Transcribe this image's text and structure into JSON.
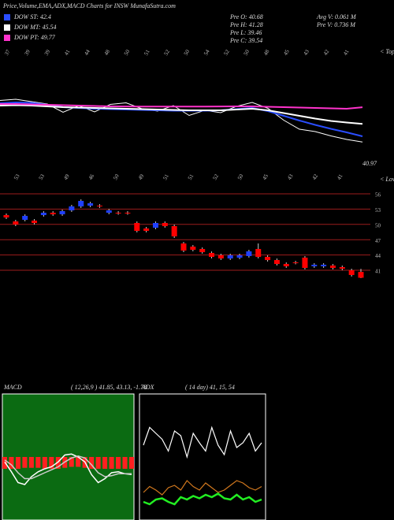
{
  "chart_data": [
    {
      "type": "line",
      "title": "Price,Volume,EMA,ADX,MACD Charts for INSW MunafaSutra.com",
      "info": [
        "Pre O: 40.68",
        "Pre H: 41.28",
        "Pre L: 39.46",
        "Pre C: 39.54",
        "Avg V: 0.061 M",
        "Pre V: 0.736 M"
      ],
      "annotation": "< Top",
      "x_labels_top": [
        "37",
        "39",
        "39",
        "41",
        "44",
        "48",
        "50",
        "51",
        "52",
        "50",
        "54",
        "52",
        "50",
        "48",
        "45",
        "43",
        "42",
        "41"
      ],
      "x_labels_bottom": [
        "53",
        "53",
        "49",
        "46",
        "50",
        "49",
        "51",
        "51",
        "52",
        "50",
        "45",
        "43",
        "42",
        "41"
      ],
      "ylim": [
        36,
        58
      ],
      "series": [
        {
          "color": "#ffffff",
          "values": [
            51.5,
            51.8,
            51.2,
            50.6,
            48.5,
            50.2,
            48.6,
            50.5,
            50.9,
            49.4,
            48.8,
            50.2,
            47.7,
            49.0,
            48.4,
            50.0,
            51.0,
            49.5,
            46.5,
            44.2,
            43.6,
            42.5,
            41.6,
            40.97
          ]
        },
        {
          "name": "DOW ST: 42.4",
          "color": "#2a4dff",
          "values": [
            50.8,
            51.0,
            50.9,
            50.4,
            49.8,
            49.6,
            49.4,
            49.3,
            49.2,
            49.1,
            49.0,
            48.9,
            48.9,
            48.9,
            49.0,
            49.3,
            49.6,
            48.8,
            47.6,
            46.4,
            45.3,
            44.3,
            43.4,
            42.4
          ]
        },
        {
          "name": "DOW MT: 45.54",
          "color": "#ffffff",
          "values": [
            50.2,
            50.3,
            50.2,
            50.0,
            49.8,
            49.7,
            49.6,
            49.5,
            49.4,
            49.3,
            49.2,
            49.1,
            49.0,
            49.0,
            49.0,
            49.2,
            49.4,
            49.0,
            48.3,
            47.6,
            46.9,
            46.3,
            45.9,
            45.54
          ]
        },
        {
          "name": "DOW PT: 49.77",
          "color": "#ff33cc",
          "values": [
            50.6,
            50.6,
            50.5,
            50.4,
            50.3,
            50.2,
            50.1,
            50.0,
            49.98,
            49.96,
            49.95,
            49.95,
            49.95,
            49.97,
            49.99,
            50.0,
            50.0,
            49.9,
            49.8,
            49.7,
            49.6,
            49.5,
            49.4,
            49.77
          ]
        }
      ]
    },
    {
      "type": "candlestick",
      "annotation": "< Lower",
      "ylim": [
        39,
        57
      ],
      "yticks": [
        56,
        53,
        50,
        47,
        44,
        41
      ],
      "grid_color": "#9b1c1c",
      "up_color": "#2040ff",
      "down_color": "#ff0000",
      "open": [
        51.83,
        50.59,
        50.9,
        50.74,
        51.83,
        52.29,
        51.98,
        52.75,
        53.53,
        53.68,
        53.68,
        52.29,
        52.29,
        52.29,
        50.28,
        49.2,
        49.35,
        50.28,
        49.66,
        46.26,
        45.64,
        45.18,
        44.4,
        43.94,
        43.32,
        43.48,
        43.79,
        45.18,
        43.63,
        43.01,
        42.24,
        42.55,
        43.48,
        41.78,
        41.78,
        41.93,
        41.62,
        41.0,
        40.68
      ],
      "high": [
        52.13,
        50.89,
        51.97,
        51.04,
        52.59,
        52.59,
        52.9,
        53.83,
        54.91,
        54.44,
        53.98,
        53.05,
        52.59,
        52.59,
        50.58,
        49.5,
        50.58,
        50.58,
        49.96,
        46.56,
        45.94,
        45.48,
        44.7,
        44.24,
        44.24,
        44.24,
        45.01,
        46.26,
        43.93,
        43.31,
        42.54,
        42.85,
        43.78,
        42.39,
        42.39,
        42.23,
        41.92,
        41.3,
        41.28
      ],
      "low": [
        51.06,
        49.67,
        50.6,
        49.98,
        51.53,
        51.68,
        51.68,
        52.45,
        53.23,
        53.38,
        53.23,
        51.99,
        51.9,
        51.9,
        48.43,
        48.43,
        49.05,
        49.36,
        47.35,
        44.57,
        44.72,
        44.26,
        43.33,
        43.02,
        43.02,
        43.18,
        43.49,
        43.33,
        42.71,
        41.94,
        41.48,
        42.17,
        41.17,
        41.48,
        41.48,
        41.17,
        41.01,
        39.78,
        39.46
      ],
      "close": [
        51.36,
        49.97,
        51.67,
        50.28,
        52.29,
        51.98,
        52.6,
        53.53,
        54.61,
        54.14,
        53.53,
        52.75,
        52.2,
        52.2,
        48.73,
        48.73,
        50.28,
        49.66,
        47.65,
        44.87,
        45.02,
        44.56,
        43.63,
        43.32,
        43.94,
        43.94,
        44.71,
        43.63,
        43.01,
        42.24,
        41.78,
        42.47,
        41.47,
        42.09,
        42.09,
        41.47,
        41.31,
        40.08,
        39.54
      ]
    },
    {
      "type": "macd",
      "title": "MACD",
      "subtitle": "( 12,26,9 ) 41.85, 43.13, -1.78",
      "ylim": [
        -6,
        6
      ],
      "background": "#0b6b12",
      "series": [
        {
          "color": "#ff2020",
          "values": [
            -1.2,
            -1.2,
            -1.2,
            -1.1,
            -1.1,
            -1.1,
            -1.2,
            -1.2,
            -1.2,
            -1.1,
            -1.0,
            -1.0,
            -1.1,
            -1.2,
            -1.2,
            -1.2,
            -1.2,
            -1.2,
            -1.2,
            -1.2
          ]
        },
        {
          "color": "#ffffff",
          "values": [
            -0.5,
            -1.5,
            -2.6,
            -2.8,
            -2.0,
            -1.5,
            -1.2,
            -1.0,
            -0.5,
            0.2,
            0.3,
            0.0,
            -0.5,
            -1.8,
            -2.6,
            -2.2,
            -1.6,
            -1.5,
            -1.7,
            -1.78
          ]
        },
        {
          "color": "#cccccc",
          "values": [
            -0.3,
            -0.8,
            -1.6,
            -2.2,
            -2.2,
            -1.9,
            -1.6,
            -1.3,
            -1.0,
            -0.5,
            -0.1,
            0.1,
            -0.1,
            -0.8,
            -1.6,
            -2.0,
            -1.9,
            -1.7,
            -1.7,
            -1.7
          ]
        }
      ]
    },
    {
      "type": "adx",
      "title": "ADX",
      "subtitle": "( 14 day) 41, 15, 54",
      "ylim": [
        0,
        100
      ],
      "series": [
        {
          "color": "#ffffff",
          "values": [
            60,
            75,
            70,
            65,
            55,
            72,
            68,
            50,
            70,
            62,
            55,
            75,
            60,
            52,
            72,
            58,
            62,
            70,
            55,
            62
          ]
        },
        {
          "color": "#d2781e",
          "values": [
            20,
            25,
            22,
            18,
            24,
            26,
            22,
            30,
            25,
            22,
            28,
            24,
            20,
            22,
            26,
            30,
            28,
            24,
            22,
            25
          ]
        },
        {
          "color": "#22ee22",
          "values": [
            12,
            10,
            14,
            15,
            12,
            10,
            16,
            14,
            17,
            15,
            18,
            16,
            19,
            15,
            14,
            18,
            14,
            16,
            12,
            14
          ]
        }
      ]
    }
  ]
}
